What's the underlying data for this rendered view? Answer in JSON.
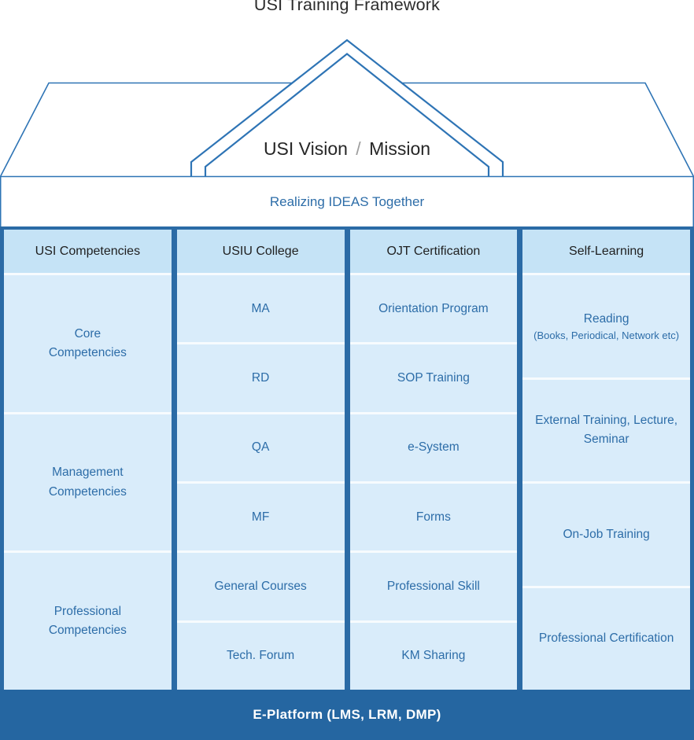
{
  "title": "USI Training Framework",
  "roof": {
    "part1": "USI Vision",
    "separator": "/",
    "part2": "Mission"
  },
  "banner": "Realizing IDEAS Together",
  "columns": [
    {
      "header": "USI Competencies",
      "cells": [
        "Core Competencies",
        "Management Competencies",
        "Professional Competencies"
      ]
    },
    {
      "header": "USIU College",
      "cells": [
        "MA",
        "RD",
        "QA",
        "MF",
        "General Courses",
        "Tech. Forum"
      ]
    },
    {
      "header": "OJT Certification",
      "cells": [
        "Orientation Program",
        "SOP Training",
        "e-System",
        "Forms",
        "Professional Skill",
        "KM Sharing"
      ]
    },
    {
      "header": "Self-Learning",
      "cells": [
        {
          "main": "Reading",
          "sub": "(Books, Periodical, Network etc)"
        },
        "External Training, Lecture, Seminar",
        "On-Job Training",
        "Professional Certification"
      ]
    }
  ],
  "footer": "E-Platform (LMS, LRM, DMP)",
  "colors": {
    "roof_line": "#2E74B5",
    "frame_blue": "#2B6BA6",
    "header_fill": "#C5E3F6",
    "cell_fill": "#D9ECFA",
    "cell_text": "#2D6DA8",
    "footer_bg": "#2566A1",
    "title_text": "#2B2B2B",
    "separator_gray": "#9E9E9E"
  }
}
